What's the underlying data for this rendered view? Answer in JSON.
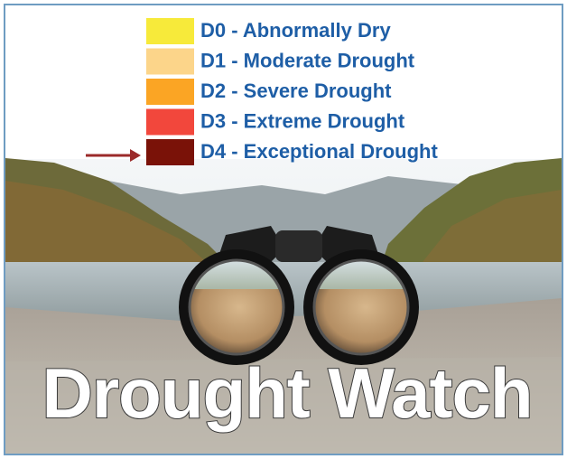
{
  "legend": {
    "items": [
      {
        "label": "D0 - Abnormally Dry",
        "color": "#f7ea3a"
      },
      {
        "label": "D1 - Moderate Drought",
        "color": "#fcd58a"
      },
      {
        "label": "D2 - Severe Drought",
        "color": "#fba524"
      },
      {
        "label": "D3 - Extreme Drought",
        "color": "#f2473c"
      },
      {
        "label": "D4 - Exceptional Drought",
        "color": "#7a1208"
      }
    ]
  },
  "title": "Drought Watch"
}
